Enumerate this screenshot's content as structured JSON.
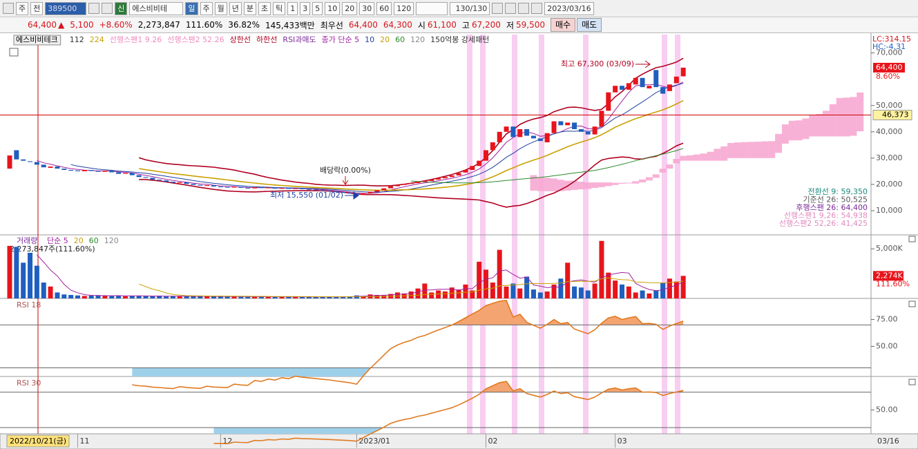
{
  "toolbar": {
    "buttons": [
      "주",
      "전"
    ],
    "code": "389500",
    "new": "신",
    "name": "에스비비테",
    "periods": [
      "일",
      "주",
      "월",
      "년",
      "분",
      "초",
      "틱"
    ],
    "intervals": [
      "1",
      "3",
      "5",
      "10",
      "20",
      "30",
      "60",
      "120"
    ],
    "count": "130/130",
    "date": "2023/03/16"
  },
  "quote": {
    "price": "64,400",
    "arrow": "▲",
    "change": "5,100",
    "rate": "+8.60%",
    "volume": "2,273,847",
    "volume_ratio": "111.60%",
    "turnover": "36.82%",
    "amount": "145,433백만",
    "best_label": "최우선",
    "ask": "64,400",
    "bid": "64,300",
    "open_label": "시",
    "open": "61,100",
    "high_label": "고",
    "high": "67,200",
    "low_label": "저",
    "low": "59,500",
    "buy": "매수",
    "sell": "매도"
  },
  "chart_data": [
    {
      "type": "candlestick",
      "title": "에스비비테크",
      "up_color": "#e8141b",
      "down_color": "#1f5fbf",
      "legend": [
        {
          "name": "112",
          "color": "#333333"
        },
        {
          "name": "224",
          "color": "#c9a000"
        },
        {
          "name": "선행스팬1 9.26",
          "color": "#f08ac0"
        },
        {
          "name": "선행스팬2 52.26",
          "color": "#f08ac0"
        },
        {
          "name": "상한선",
          "color": "#b00020"
        },
        {
          "name": "하한선",
          "color": "#b00020"
        },
        {
          "name": "RSI과매도",
          "color": "#7a2a9a"
        },
        {
          "name": "종가 단순 5",
          "color": "#a020a0"
        },
        {
          "name": "10",
          "color": "#1e3fa0"
        },
        {
          "name": "20",
          "color": "#c9a000"
        },
        {
          "name": "60",
          "color": "#2a8a2a"
        },
        {
          "name": "120",
          "color": "#888888"
        },
        {
          "name": "150억봉 강세패턴",
          "color": "#333333"
        }
      ],
      "categories": [
        "2022/10/21(금)",
        null,
        null,
        null,
        null,
        null,
        null,
        null,
        null,
        null,
        "11",
        null,
        null,
        null,
        null,
        null,
        null,
        null,
        null,
        null,
        null,
        null,
        null,
        null,
        null,
        null,
        null,
        null,
        null,
        null,
        null,
        "12",
        null,
        null,
        null,
        null,
        null,
        null,
        null,
        null,
        null,
        null,
        null,
        null,
        null,
        null,
        null,
        null,
        null,
        null,
        null,
        "2023/01",
        null,
        null,
        null,
        null,
        null,
        null,
        null,
        null,
        null,
        null,
        null,
        null,
        null,
        null,
        null,
        null,
        null,
        null,
        "02",
        null,
        null,
        null,
        null,
        null,
        null,
        null,
        null,
        null,
        null,
        null,
        null,
        null,
        null,
        null,
        null,
        null,
        null,
        "03",
        null,
        null,
        null,
        null,
        null,
        null,
        null,
        null,
        null,
        "03/16"
      ],
      "open": [
        26000,
        33000,
        29500,
        28800,
        28500,
        27500,
        26300,
        26800,
        26000,
        25500,
        25300,
        25000,
        25500,
        25100,
        24800,
        25200,
        24600,
        24000,
        24300,
        23500,
        22800,
        22500,
        21800,
        21500,
        21000,
        20500,
        20800,
        20200,
        19800,
        19400,
        19700,
        19200,
        19000,
        18800,
        19100,
        18700,
        18500,
        18900,
        18600,
        18800,
        18400,
        18600,
        18300,
        18500,
        18200,
        18000,
        17800,
        17600,
        17400,
        17100,
        16800,
        16500,
        16000,
        16600,
        17200,
        17800,
        18500,
        19300,
        19800,
        20200,
        20500,
        21000,
        21300,
        21800,
        22300,
        22800,
        23400,
        24500,
        25500,
        27000,
        29000,
        33000,
        36000,
        40000,
        42000,
        38000,
        41000,
        38500,
        37500,
        36000,
        39500,
        44000,
        42500,
        43500,
        41000,
        40000,
        39000,
        42000,
        48000,
        55000,
        57500,
        56000,
        58000,
        60500,
        56500,
        63500,
        57000,
        55500,
        58500,
        61100
      ],
      "close": [
        31000,
        29500,
        29000,
        28500,
        27500,
        26500,
        26800,
        26000,
        25500,
        25200,
        25000,
        25500,
        25100,
        24800,
        25200,
        24600,
        24000,
        24300,
        23500,
        22800,
        22500,
        21800,
        21500,
        21000,
        20600,
        20800,
        20200,
        19800,
        19500,
        19700,
        19200,
        19000,
        18800,
        19100,
        18700,
        18500,
        18900,
        18600,
        18800,
        18400,
        18600,
        18300,
        18500,
        18200,
        18000,
        17800,
        17600,
        17400,
        17100,
        16800,
        16500,
        16000,
        16600,
        17200,
        17800,
        18500,
        19300,
        19800,
        20200,
        20500,
        21000,
        21300,
        21800,
        22300,
        22800,
        23400,
        24300,
        25500,
        27000,
        29000,
        33000,
        36000,
        40000,
        42000,
        38000,
        41000,
        38500,
        37500,
        36500,
        39500,
        44000,
        42500,
        43500,
        41000,
        40000,
        39000,
        42000,
        48000,
        55000,
        57500,
        56000,
        58500,
        60500,
        57000,
        57500,
        57000,
        54500,
        58000,
        61000,
        64400
      ],
      "ylim": [
        800,
        77000
      ],
      "yticks": [
        {
          "value": 10000,
          "label": "10,000"
        },
        {
          "value": 20000,
          "label": "20,000"
        },
        {
          "value": 30000,
          "label": "30,000"
        },
        {
          "value": 40000,
          "label": "40,000"
        },
        {
          "value": 50000,
          "label": "50,000"
        },
        {
          "value": 70000,
          "label": "70,000"
        }
      ],
      "ref_line": {
        "value": 46373,
        "label": "46,373"
      },
      "last_label": "64,400",
      "last_rate": "8.60%",
      "lc": "LC:314.15",
      "hc": "HC:-4.31",
      "annotations": [
        "배당락(0.00%)",
        "최저 15,550 (01/02)",
        "최고 67,300 (03/09)"
      ],
      "indicator_values": [
        {
          "text": "전환선 9: 59,350",
          "color": "#1a8a7a"
        },
        {
          "text": "기준선 26: 50,525",
          "color": "#555555"
        },
        {
          "text": "후행스팬 26: 64,400",
          "color": "#7a2a9a"
        },
        {
          "text": "선행스팬1 9,26: 54,938",
          "color": "#e08ac0"
        },
        {
          "text": "선행스팬2 52,26: 41,425",
          "color": "#e08ac0"
        }
      ]
    },
    {
      "type": "bar",
      "title": "거래량",
      "legend": [
        {
          "name": "단순 5",
          "color": "#a020a0"
        },
        {
          "name": "20",
          "color": "#c9a000"
        },
        {
          "name": "60",
          "color": "#2a8a2a"
        },
        {
          "name": "120",
          "color": "#888888"
        }
      ],
      "info": "2,273,847주(111.60%)",
      "values": [
        5300000,
        5200000,
        3600000,
        4600000,
        3300000,
        1600000,
        1200000,
        600000,
        400000,
        350000,
        300000,
        250000,
        280000,
        320000,
        260000,
        240000,
        300000,
        220000,
        250000,
        270000,
        230000,
        210000,
        250000,
        200000,
        220000,
        240000,
        210000,
        190000,
        230000,
        200000,
        180000,
        200000,
        180000,
        190000,
        170000,
        160000,
        180000,
        170000,
        150000,
        160000,
        170000,
        150000,
        160000,
        140000,
        150000,
        170000,
        160000,
        150000,
        180000,
        170000,
        200000,
        300000,
        250000,
        400000,
        350000,
        300000,
        450000,
        600000,
        500000,
        700000,
        1000000,
        1500000,
        600000,
        800000,
        700000,
        1100000,
        900000,
        1400000,
        800000,
        3700000,
        2900000,
        1600000,
        4900000,
        1200000,
        1500000,
        1000000,
        2200000,
        900000,
        600000,
        700000,
        1400000,
        2000000,
        3600000,
        1200000,
        1100000,
        800000,
        1500000,
        5800000,
        2600000,
        1800000,
        1400000,
        1200000,
        600000,
        800000,
        500000,
        800000,
        1600000,
        2000000,
        1700000,
        2273847
      ],
      "ylim": [
        0,
        6200000
      ],
      "yticks": [
        {
          "value": 5000000,
          "label": "5,000K"
        }
      ],
      "last_label": "2,274K",
      "last_rate": "111.60%"
    },
    {
      "type": "rsi",
      "title": "RSI 18",
      "period": 18,
      "color": "#e07a20",
      "levels": [
        30,
        70
      ],
      "ylim": [
        22,
        94
      ],
      "yticks": [
        {
          "value": 75,
          "label": "75.00"
        },
        {
          "value": 50,
          "label": "50.00"
        }
      ]
    },
    {
      "type": "rsi",
      "title": "RSI 30",
      "period": 30,
      "color": "#e07a20",
      "levels": [
        30,
        70
      ],
      "ylim": [
        23,
        87
      ],
      "yticks": [
        {
          "value": 50,
          "label": "50.00"
        }
      ]
    }
  ]
}
